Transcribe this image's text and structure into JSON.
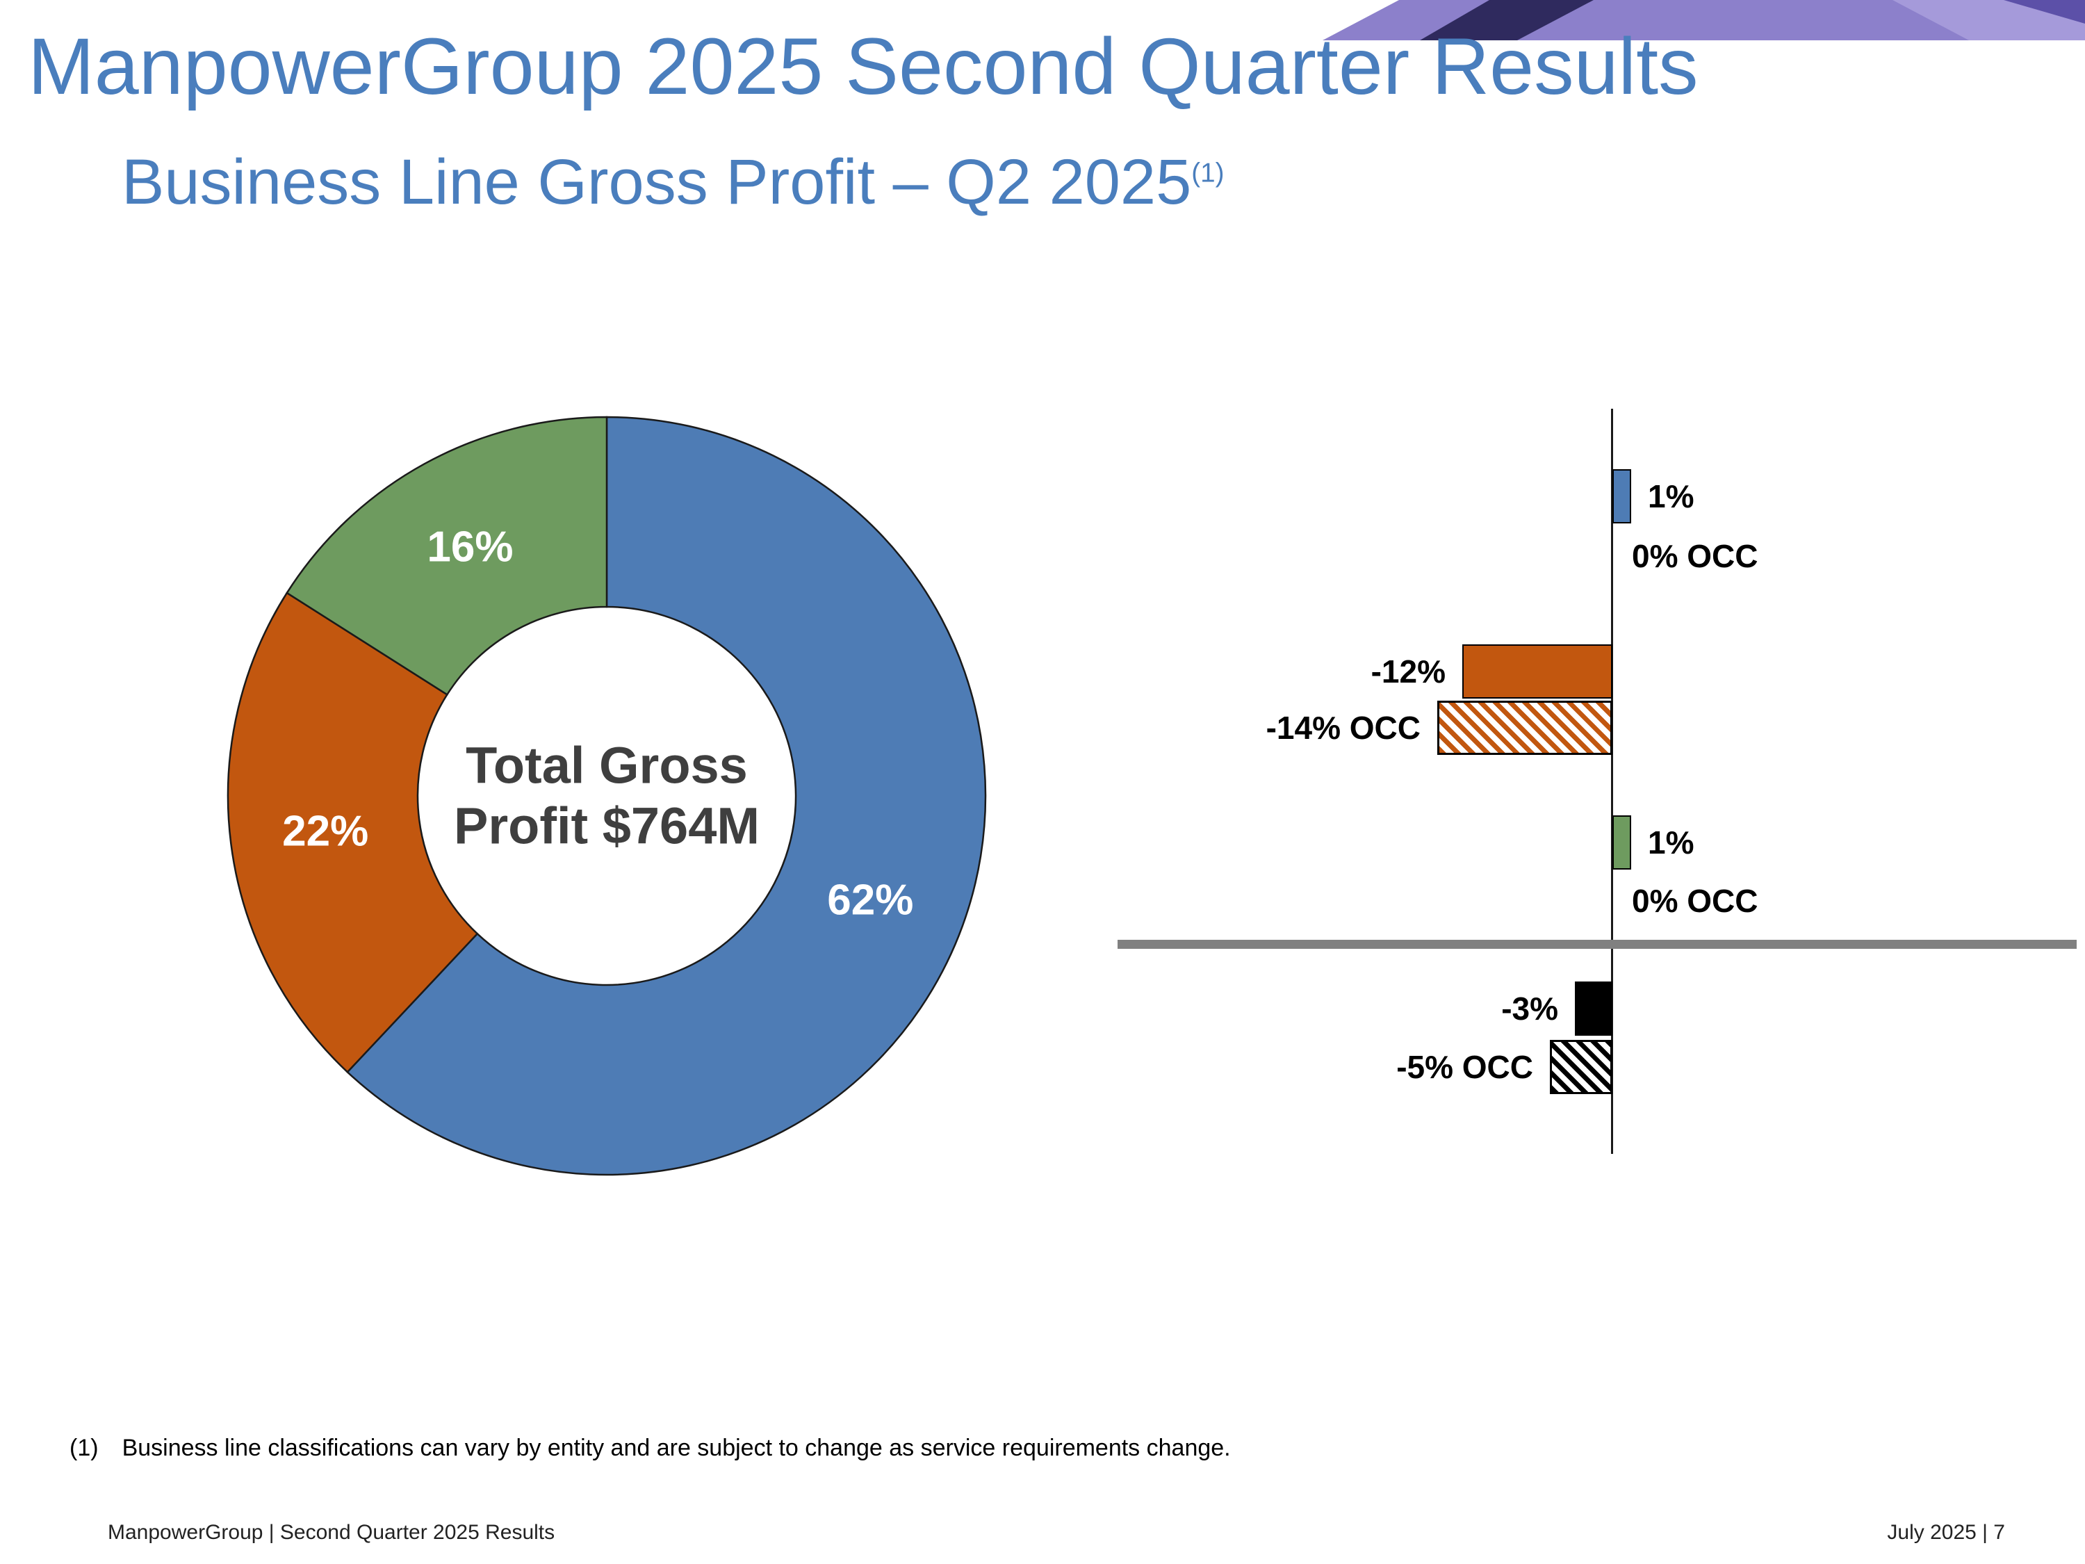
{
  "header": {
    "title": "ManpowerGroup 2025 Second Quarter Results",
    "subtitle": "Business Line Gross Profit – Q2 2025",
    "subtitle_note_ref": "(1)"
  },
  "decor": {
    "banner_colors": [
      "#8C80CB",
      "#2F2A5E",
      "#A59ADA",
      "#5C50A8"
    ]
  },
  "chart_data": [
    {
      "type": "pie",
      "subtype": "donut",
      "center_label": "Total Gross Profit $764M",
      "slices": [
        {
          "label": "62%",
          "value": 62,
          "color": "#4E7CB5"
        },
        {
          "label": "22%",
          "value": 22,
          "color": "#C2570F"
        },
        {
          "label": "16%",
          "value": 16,
          "color": "#6E9B5F"
        }
      ]
    },
    {
      "type": "bar",
      "orientation": "horizontal",
      "unit": "percent growth",
      "zero_axis": true,
      "bars": [
        {
          "label": "1%",
          "value": 1,
          "color": "#4E7CB5",
          "hatch": false
        },
        {
          "label": "0% OCC",
          "value": 0,
          "color": "#4E7CB5",
          "hatch": true
        },
        {
          "label": "-12%",
          "value": -12,
          "color": "#C2570F",
          "hatch": false
        },
        {
          "label": "-14% OCC",
          "value": -14,
          "color": "#C2570F",
          "hatch": true
        },
        {
          "label": "1%",
          "value": 1,
          "color": "#6E9B5F",
          "hatch": false
        },
        {
          "label": "0% OCC",
          "value": 0,
          "color": "#6E9B5F",
          "hatch": true
        },
        {
          "label": "-3%",
          "value": -3,
          "color": "#000000",
          "hatch": false
        },
        {
          "label": "-5% OCC",
          "value": -5,
          "color": "#000000",
          "hatch": true
        }
      ]
    }
  ],
  "footnote": {
    "ref": "(1)",
    "text": "Business line classifications can vary by entity and are subject to change as service requirements change."
  },
  "footer": {
    "left": "ManpowerGroup  |  Second Quarter 2025 Results",
    "right": "July 2025   |   7"
  }
}
